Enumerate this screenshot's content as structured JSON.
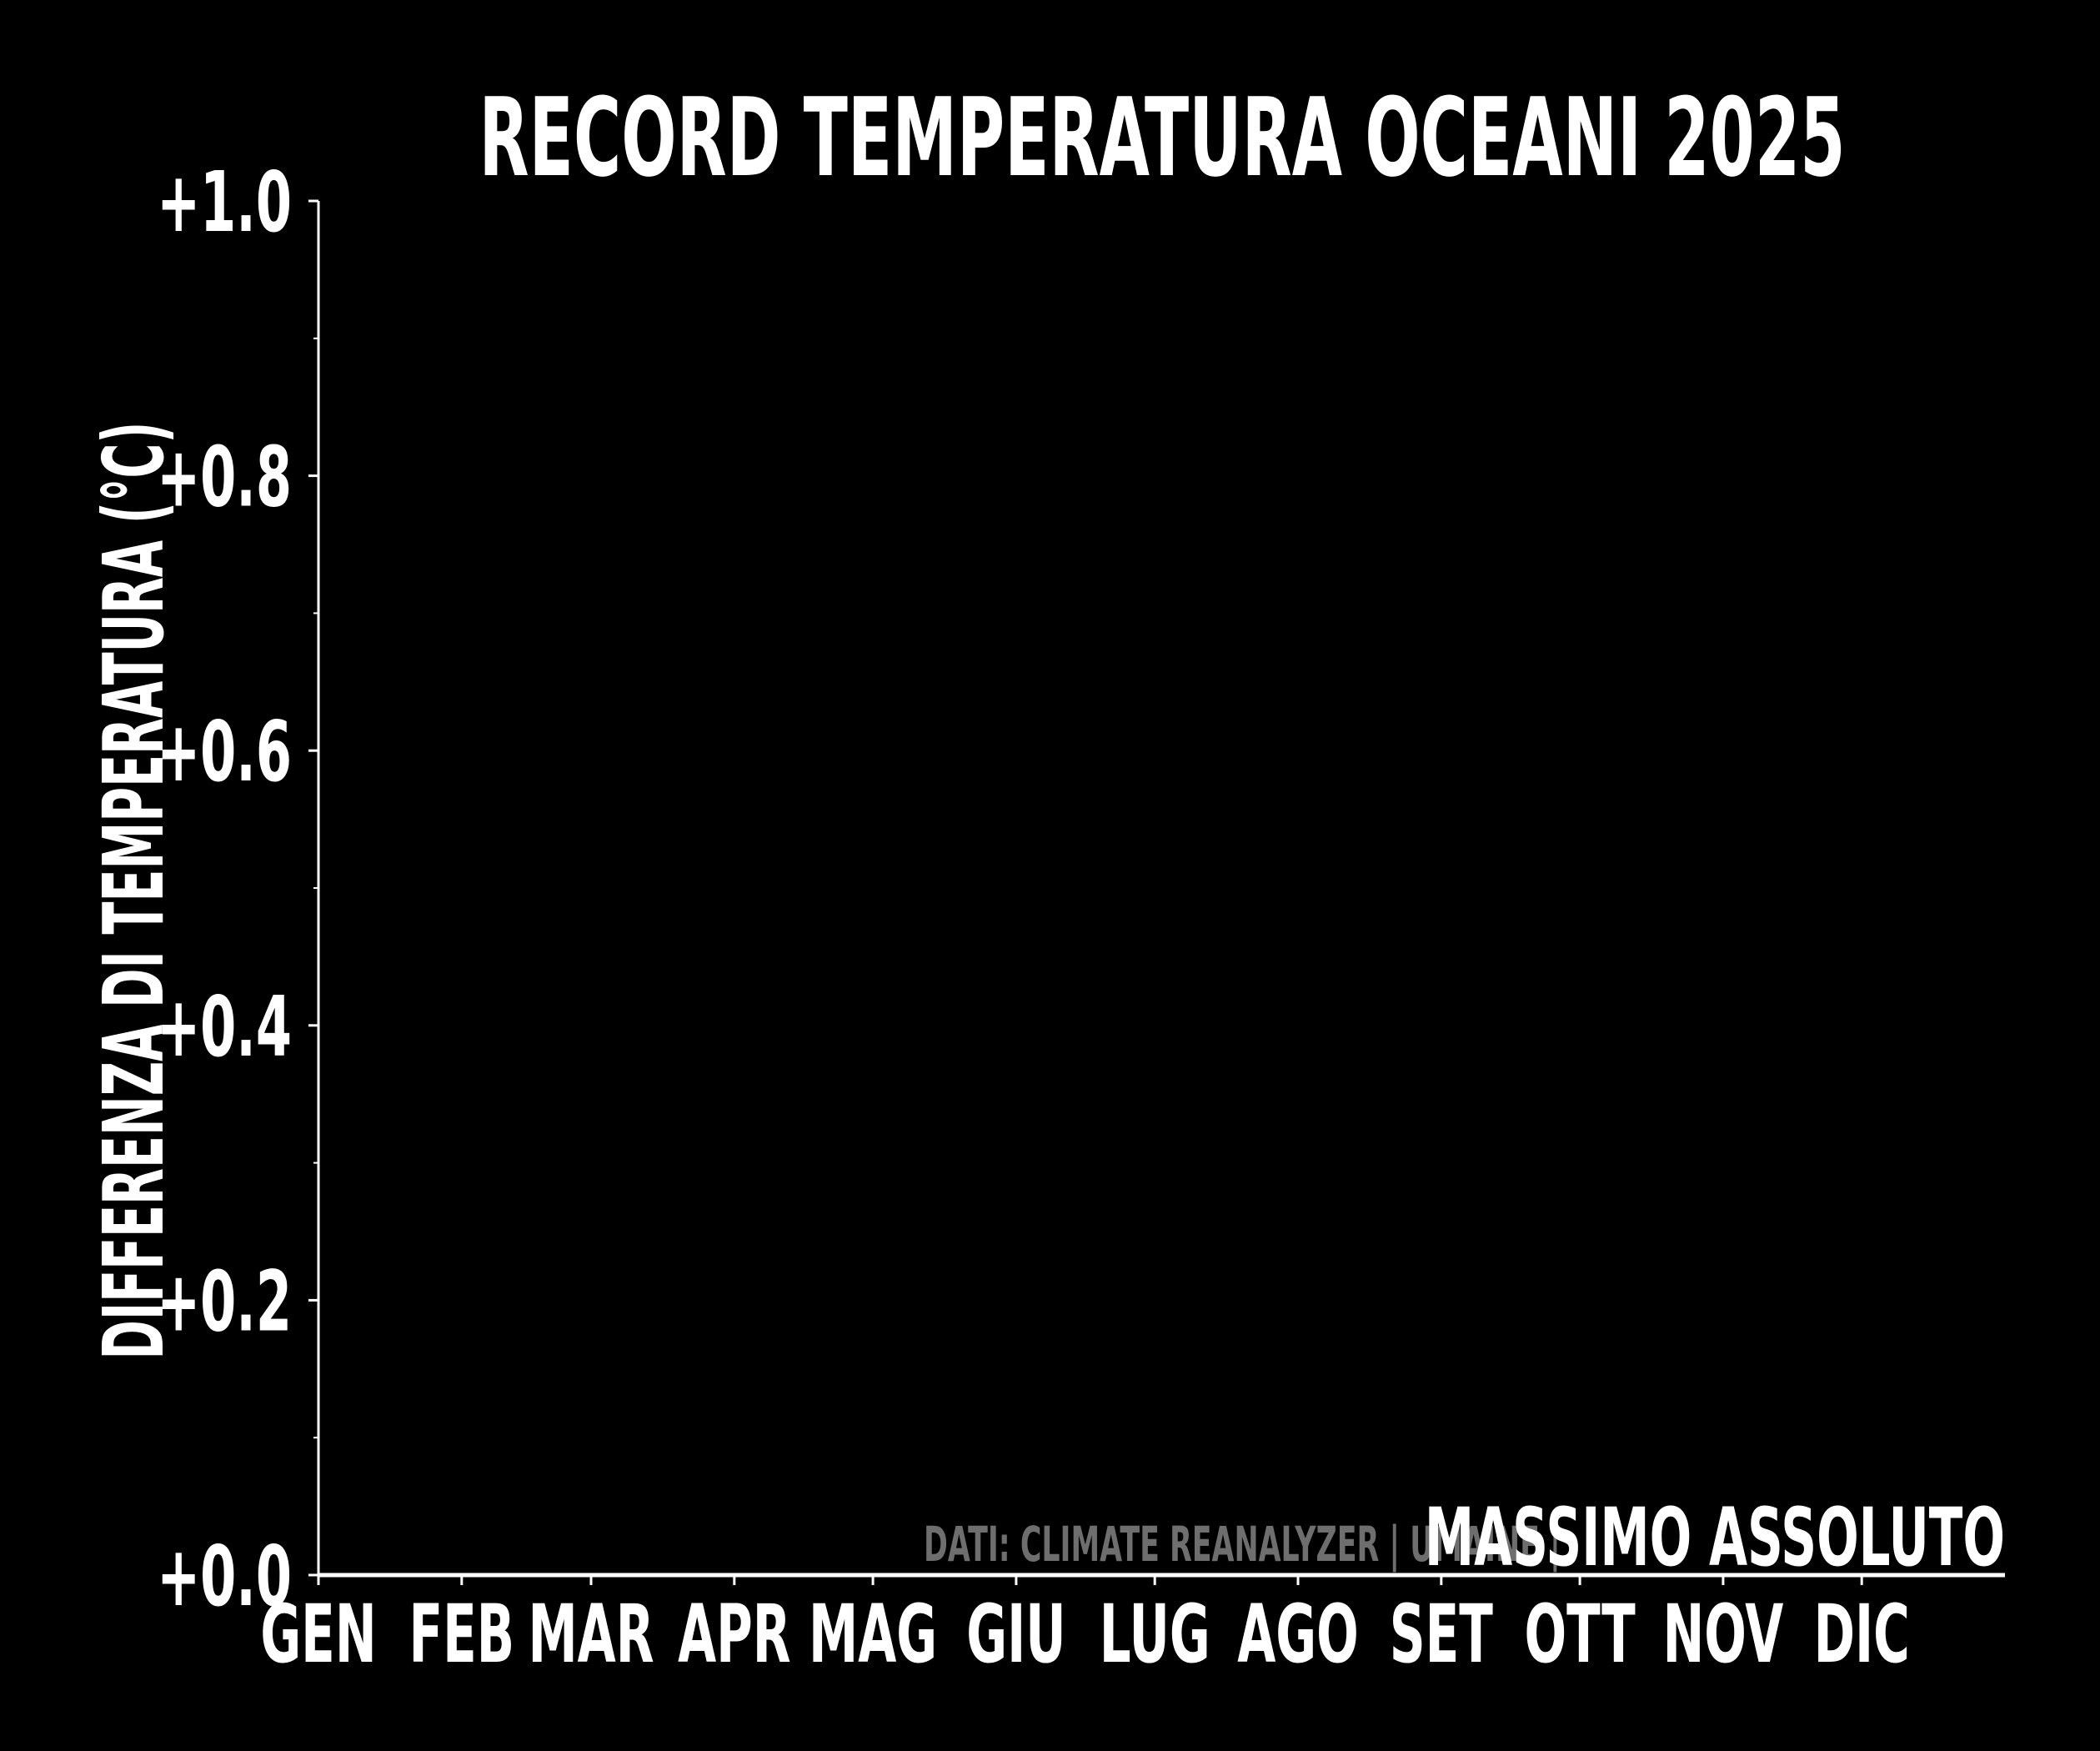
{
  "chart_data": {
    "type": "line",
    "title": "RECORD TEMPERATURA OCEANI 2025",
    "y_label": "DIFFERENZA DI TEMPERATURA (°C)",
    "source": "DATI: CLIMATE REANALYZER | UMAINE |",
    "xlim": [
      0,
      365
    ],
    "xticks": [
      {
        "value": 0,
        "label": "GEN"
      },
      {
        "value": 31,
        "label": "FEB"
      },
      {
        "value": 59,
        "label": "MAR"
      },
      {
        "value": 90,
        "label": "APR"
      },
      {
        "value": 120,
        "label": "MAG"
      },
      {
        "value": 151,
        "label": "GIU"
      },
      {
        "value": 181,
        "label": "LUG"
      },
      {
        "value": 212,
        "label": "AGO"
      },
      {
        "value": 243,
        "label": "SET"
      },
      {
        "value": 273,
        "label": "OTT"
      },
      {
        "value": 304,
        "label": "NOV"
      },
      {
        "value": 334,
        "label": "DIC"
      }
    ],
    "ylim": [
      0,
      1
    ],
    "yticks": [
      {
        "value": 0,
        "label": "+0.0"
      },
      {
        "value": 0.2,
        "label": "+0.2"
      },
      {
        "value": 0.4,
        "label": "+0.4"
      },
      {
        "value": 0.6,
        "label": "+0.6"
      },
      {
        "value": 0.8,
        "label": "+0.8"
      },
      {
        "value": 1,
        "label": "+1.0"
      }
    ],
    "yminorticks": [
      0.1,
      0.3,
      0.5,
      0.7,
      0.9
    ],
    "reference_line": {
      "value": 0,
      "label": "MASSIMO ASSOLUTO",
      "color": "#ffffff"
    }
  }
}
